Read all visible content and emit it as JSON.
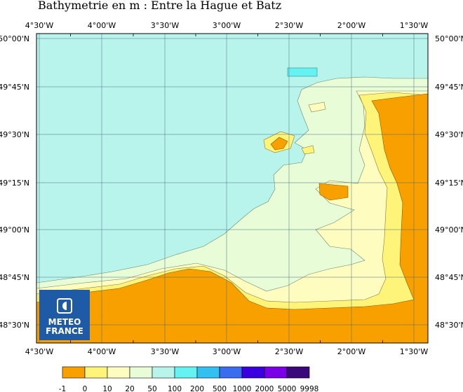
{
  "title": "Bathymetrie en m : Entre la Hague et Batz",
  "colors": {
    "land": "#f8a000",
    "deep_land": "#f49400",
    "band_0_10": "#fff47a",
    "band_10_20": "#fffcc0",
    "band_20_50": "#e8fcd8",
    "band_50_100": "#b8f4ec",
    "band_100_200": "#66f2f2",
    "grid": "#4a6a7a",
    "frame": "#000000",
    "logo_bg": "#1f5aa6"
  },
  "map": {
    "x_ticks_top": [
      "4°30'W",
      "4°00'W",
      "3°30'W",
      "3°00'W",
      "2°30'W",
      "2°00'W",
      "1°30'W"
    ],
    "x_ticks_bottom": [
      "4°30'W",
      "4°00'W",
      "3°30'W",
      "3°00'W",
      "2°30'W",
      "2°00'W",
      "1°30'W"
    ],
    "y_ticks_left": [
      "50°00'N",
      "49°45'N",
      "49°30'N",
      "49°15'N",
      "49°00'N",
      "48°45'N",
      "48°30'N"
    ],
    "y_ticks_right": [
      "50°00'N",
      "49°45'N",
      "49°30'N",
      "49°15'N",
      "49°00'N",
      "48°45'N",
      "48°30'N"
    ]
  },
  "logo": {
    "line1": "METEO",
    "line2": "FRANCE",
    "icon": "meteo-france-logo-icon"
  },
  "legend": {
    "labels": [
      "-1",
      "0",
      "10",
      "20",
      "50",
      "100",
      "200",
      "500",
      "1000",
      "2000",
      "5000",
      "9998"
    ],
    "colors": [
      "#f8a000",
      "#fff47a",
      "#fffcc0",
      "#e8fcd8",
      "#b8f4ec",
      "#66f2f2",
      "#33c0f0",
      "#3a6cf0",
      "#3a00e0",
      "#7a00e8",
      "#3a0878"
    ]
  }
}
